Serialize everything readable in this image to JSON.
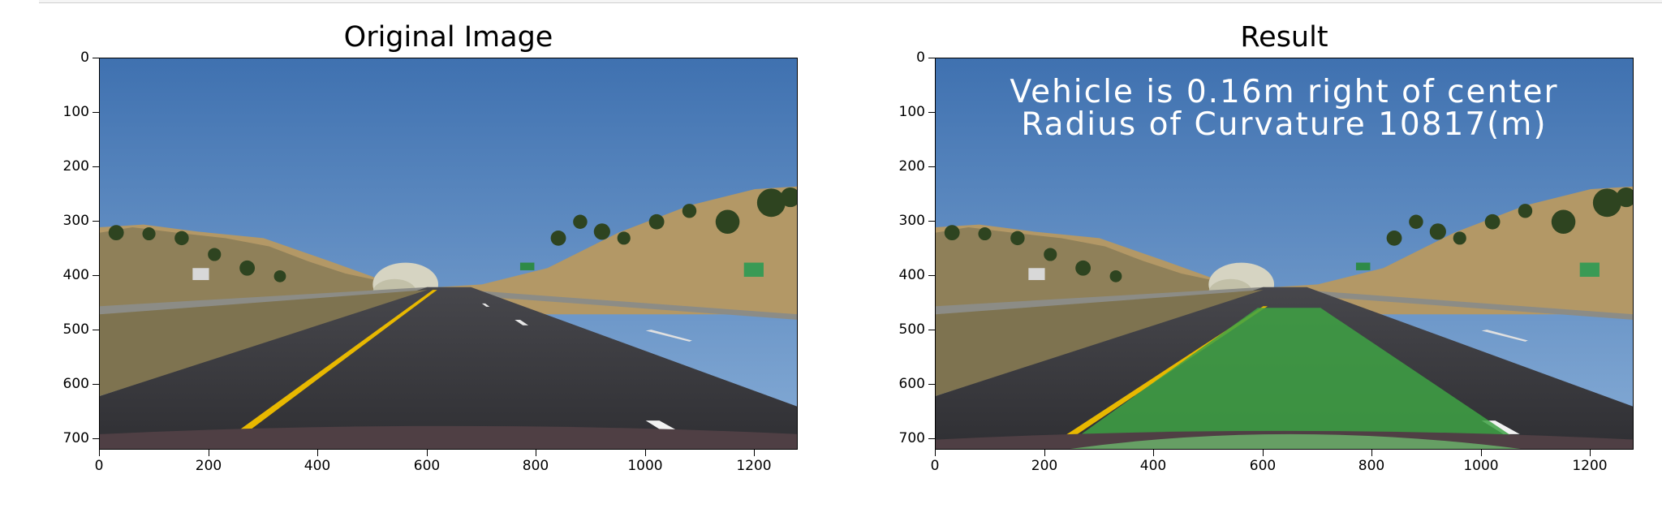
{
  "figure": {
    "panels": [
      {
        "title": "Original Image",
        "overlay_lines": []
      },
      {
        "title": "Result",
        "overlay_lines": [
          "Vehicle is 0.16m right of center",
          "Radius of Curvature 10817(m)"
        ]
      }
    ],
    "x_ticks": [
      "0",
      "200",
      "400",
      "600",
      "800",
      "1000",
      "1200"
    ],
    "y_ticks": [
      "0",
      "100",
      "200",
      "300",
      "400",
      "500",
      "600",
      "700"
    ],
    "x_tick_values": [
      0,
      200,
      400,
      600,
      800,
      1000,
      1200
    ],
    "y_tick_values": [
      0,
      100,
      200,
      300,
      400,
      500,
      600,
      700
    ],
    "image_extent": {
      "width": 1280,
      "height": 720
    },
    "colors": {
      "sky": "#4f7fb8",
      "road": "#3a3a3e",
      "lane_fill": "#3ea244",
      "yellow_line": "#e8b800",
      "hills": "#b99c6a"
    }
  }
}
